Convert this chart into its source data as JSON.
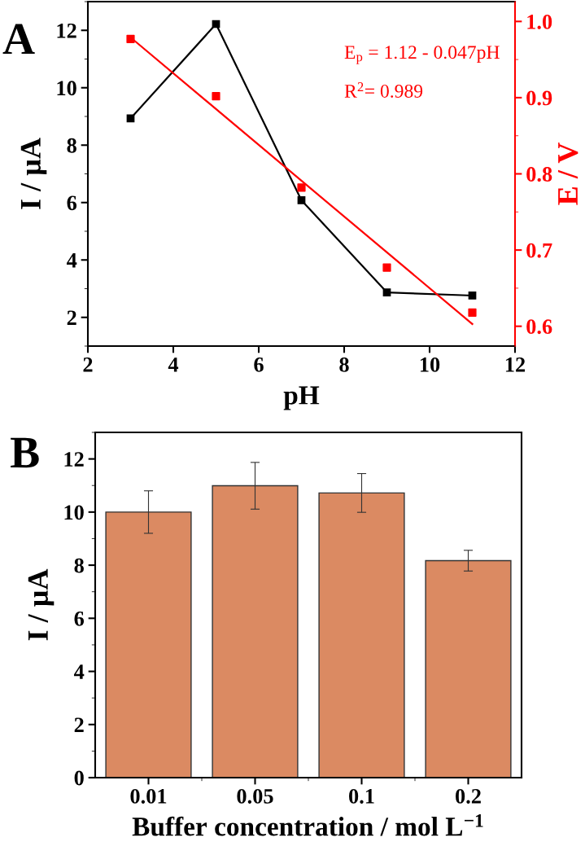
{
  "chart_data": [
    {
      "type": "line",
      "title": "A",
      "xlabel": "pH",
      "ylabel": "I / µA",
      "y2label": "E / V",
      "x": [
        3,
        5,
        7,
        9,
        11
      ],
      "series": [
        {
          "color": "#000000",
          "values": [
            8.93,
            12.22,
            6.08,
            2.87,
            2.76
          ]
        },
        {
          "type": "scatter",
          "axis": "y2",
          "color": "#ff0000",
          "values": [
            0.977,
            0.902,
            0.782,
            0.677,
            0.618
          ]
        },
        {
          "type": "line",
          "axis": "y2",
          "color": "#ff0000",
          "marker": "none",
          "x": [
            3,
            11
          ],
          "values": [
            0.979,
            0.603
          ]
        }
      ],
      "marker": "square",
      "grid": false,
      "xlim": [
        2,
        12
      ],
      "xticks": [
        2,
        4,
        6,
        8,
        10,
        12
      ],
      "ylim": [
        1,
        13
      ],
      "yticks": [
        2,
        4,
        6,
        8,
        10,
        12
      ],
      "y2lim": [
        0.574,
        1.026
      ],
      "y2ticks": [
        0.6,
        0.7,
        0.8,
        0.9,
        {
          "value": 1.0,
          "label": "1.0"
        }
      ],
      "annotations": [
        "E$_{p}$ = 1.12 - 0.047pH",
        "R$^{2}$= 0.989"
      ]
    },
    {
      "type": "bar",
      "title": "B",
      "xlabel": "Buffer concentration / mol L$^{−1}$",
      "ylabel": "I / µA",
      "categories": [
        "0.01",
        "0.05",
        "0.1",
        "0.2"
      ],
      "values": [
        10.0,
        10.99,
        10.72,
        8.17
      ],
      "color": "#db8a62",
      "errors": [
        0.8,
        0.88,
        0.73,
        0.39
      ],
      "grid": false,
      "ylim": [
        0,
        13
      ],
      "yticks": [
        0,
        2,
        4,
        6,
        8,
        10,
        12
      ]
    }
  ]
}
